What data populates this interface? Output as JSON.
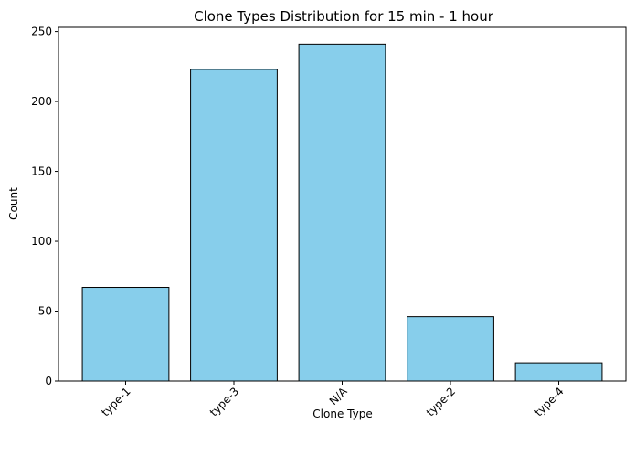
{
  "chart_data": {
    "type": "bar",
    "title": "Clone Types Distribution for 15 min - 1 hour",
    "xlabel": "Clone Type",
    "ylabel": "Count",
    "categories": [
      "type-1",
      "type-3",
      "N/A",
      "type-2",
      "type-4"
    ],
    "values": [
      67,
      223,
      241,
      46,
      13
    ],
    "ylim": [
      0,
      253
    ],
    "yticks": [
      0,
      50,
      100,
      150,
      200,
      250
    ],
    "grid": false,
    "legend": "none",
    "colors": {
      "bar_fill": "#87ceeb",
      "bar_edge": "#000000"
    }
  }
}
